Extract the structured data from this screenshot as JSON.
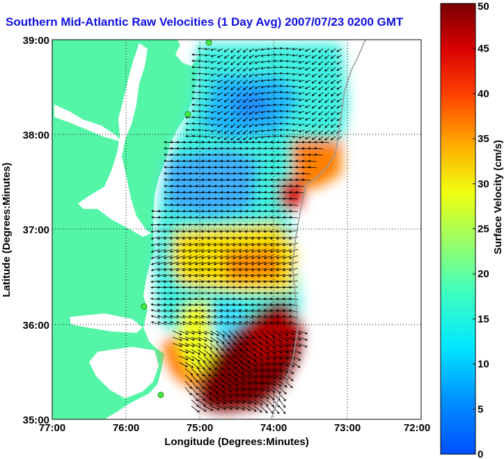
{
  "title": "Southern Mid-Atlantic Raw Velocities (1 Day Avg) 2007/07/23 0200 GMT",
  "xaxis": {
    "label": "Longitude (Degrees:Minutes)",
    "ticks": [
      "77:00",
      "76:00",
      "75:00",
      "74:00",
      "73:00",
      "72:00"
    ],
    "values": [
      -77,
      -76,
      -75,
      -74,
      -73,
      -72
    ]
  },
  "yaxis": {
    "label": "Latitude (Degrees:Minutes)",
    "ticks": [
      "39:00",
      "38:00",
      "37:00",
      "36:00",
      "35:00"
    ],
    "values": [
      39,
      38,
      37,
      36,
      35
    ]
  },
  "colorbar": {
    "label": "Surface Velocity (cm/s)",
    "range": [
      0,
      50
    ],
    "ticks": [
      "50",
      "45",
      "40",
      "35",
      "30",
      "25",
      "20",
      "15",
      "10",
      "5",
      "0"
    ],
    "colormap": "jet"
  },
  "colors": {
    "land": "#55f5a8",
    "water": "#ffffff",
    "title": "#1010e0",
    "station": "#44ee44"
  },
  "map_extent": {
    "lon": [
      -77,
      -72
    ],
    "lat": [
      35,
      39
    ]
  }
}
